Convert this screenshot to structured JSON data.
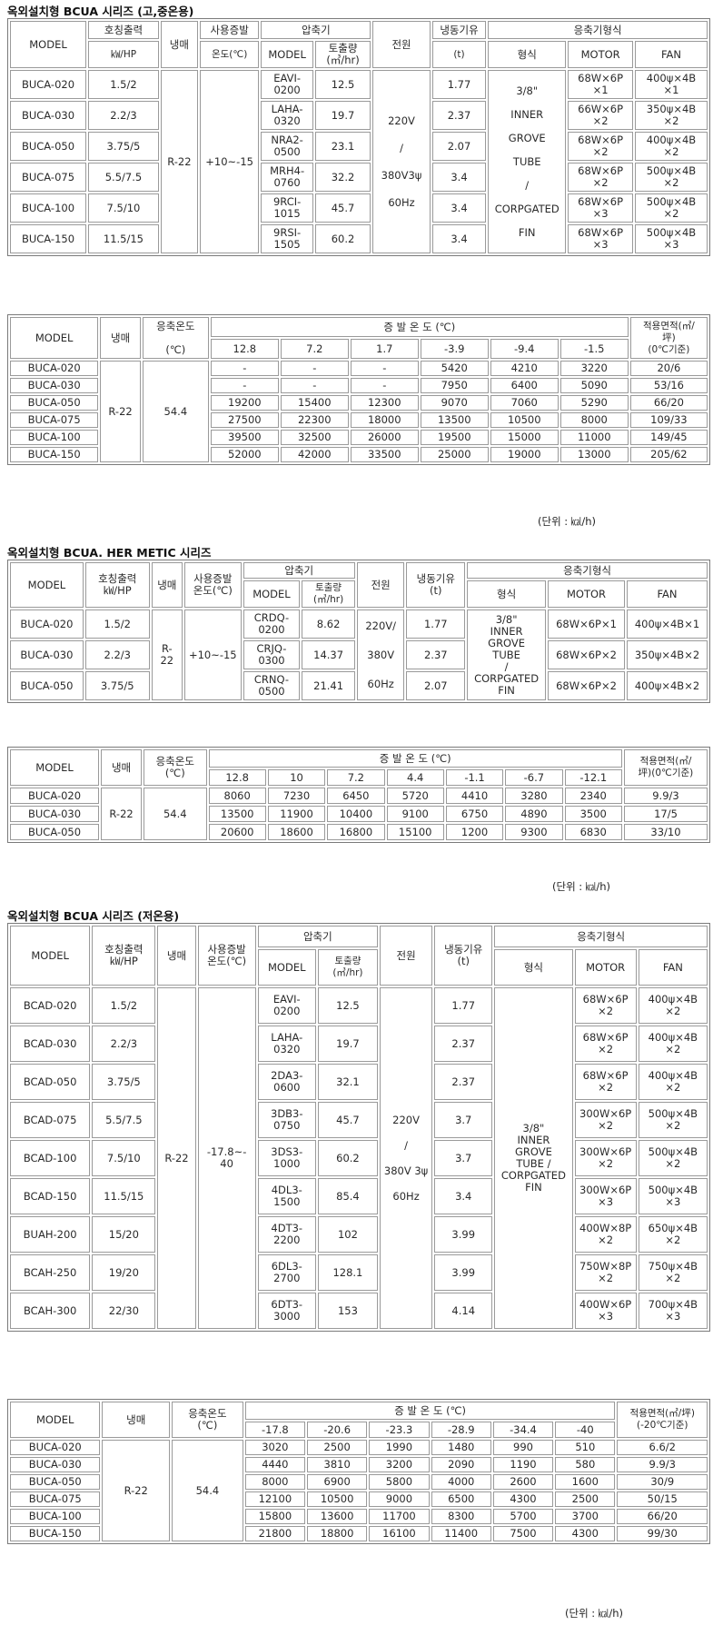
{
  "sections": [
    {
      "title": "옥외설치형 BCUA 시리즈 (고,중온용)",
      "spec": {
        "headers": {
          "model": "MODEL",
          "output": "호칭출력",
          "output_unit": "㎾/HP",
          "refrigerant": "냉매",
          "evap_temp": "사용증발",
          "evap_temp_unit": "온도(℃)",
          "compressor": "압축기",
          "comp_model": "MODEL",
          "displacement": "토출량",
          "displacement_unit": "(㎥/hr)",
          "power": "전원",
          "tonnage": "냉동기유",
          "tonnage_unit": "(t)",
          "condenser": "응축기형식",
          "type": "형식",
          "motor": "MOTOR",
          "fan": "FAN"
        },
        "refrigerant": "R-22",
        "evap_temp": "+10~-15",
        "power": [
          "220V",
          "/",
          "380V3ψ",
          "60Hz"
        ],
        "cond_type": [
          "3/8\"",
          "INNER",
          "GROVE",
          "TUBE",
          "/",
          "CORPGATED",
          "FIN"
        ],
        "rows": [
          {
            "model": "BUCA-020",
            "output": "1.5/2",
            "comp": "EAVI-\n0200",
            "disp": "12.5",
            "oil": "1.77",
            "motor": "68W×6P\n×1",
            "fan": "400ψ×4B\n×1"
          },
          {
            "model": "BUCA-030",
            "output": "2.2/3",
            "comp": "LAHA-\n0320",
            "disp": "19.7",
            "oil": "2.37",
            "motor": "66W×6P\n×2",
            "fan": "350ψ×4B\n×2"
          },
          {
            "model": "BUCA-050",
            "output": "3.75/5",
            "comp": "NRA2-\n0500",
            "disp": "23.1",
            "oil": "2.07",
            "motor": "68W×6P\n×2",
            "fan": "400ψ×4B\n×2"
          },
          {
            "model": "BUCA-075",
            "output": "5.5/7.5",
            "comp": "MRH4-\n0760",
            "disp": "32.2",
            "oil": "3.4",
            "motor": "68W×6P\n×2",
            "fan": "500ψ×4B\n×2"
          },
          {
            "model": "BUCA-100",
            "output": "7.5/10",
            "comp": "9RCI-\n1015",
            "disp": "45.7",
            "oil": "3.4",
            "motor": "68W×6P\n×3",
            "fan": "500ψ×4B\n×2"
          },
          {
            "model": "BUCA-150",
            "output": "11.5/15",
            "comp": "9RSI-\n1505",
            "disp": "60.2",
            "oil": "3.4",
            "motor": "68W×6P\n×3",
            "fan": "500ψ×4B\n×3"
          }
        ]
      },
      "capacity": {
        "headers": {
          "model": "MODEL",
          "refrigerant": "냉매",
          "cond_temp": "응축온도",
          "cond_temp_unit": "(℃)",
          "evap": "증 발 온 도 (℃)",
          "area": "적용면적(㎡/\n坪)\n(0℃기준)"
        },
        "refrigerant": "R-22",
        "cond_temp": "54.4",
        "evap_temps": [
          "12.8",
          "7.2",
          "1.7",
          "-3.9",
          "-9.4",
          "-1.5"
        ],
        "rows": [
          {
            "model": "BUCA-020",
            "values": [
              "-",
              "-",
              "-",
              "5420",
              "4210",
              "3220"
            ],
            "area": "20/6"
          },
          {
            "model": "BUCA-030",
            "values": [
              "-",
              "-",
              "-",
              "7950",
              "6400",
              "5090"
            ],
            "area": "53/16"
          },
          {
            "model": "BUCA-050",
            "values": [
              "19200",
              "15400",
              "12300",
              "9070",
              "7060",
              "5290"
            ],
            "area": "66/20"
          },
          {
            "model": "BUCA-075",
            "values": [
              "27500",
              "22300",
              "18000",
              "13500",
              "10500",
              "8000"
            ],
            "area": "109/33"
          },
          {
            "model": "BUCA-100",
            "values": [
              "39500",
              "32500",
              "26000",
              "19500",
              "15000",
              "11000"
            ],
            "area": "149/45"
          },
          {
            "model": "BUCA-150",
            "values": [
              "52000",
              "42000",
              "33500",
              "25000",
              "19000",
              "13000"
            ],
            "area": "205/62"
          }
        ]
      },
      "unit": "(단위 : ㎉/h)"
    },
    {
      "title": "옥외설치형 BCUA. HER METIC 시리즈",
      "spec": {
        "headers": {
          "model": "MODEL",
          "output": "호칭출력\n㎾/HP",
          "refrigerant": "냉매",
          "evap_temp": "사용증발\n온도(℃)",
          "compressor": "압축기",
          "comp_model": "MODEL",
          "displacement": "토출량\n(㎥/hr)",
          "power": "전원",
          "tonnage": "냉동기유\n(t)",
          "condenser": "응축기형식",
          "type": "형식",
          "motor": "MOTOR",
          "fan": "FAN"
        },
        "refrigerant": "R-\n22",
        "evap_temp": "+10~-15",
        "power": [
          "220V/",
          "380V",
          "60Hz"
        ],
        "cond_type": "3/8\"\nINNER\nGROVE\nTUBE\n/\nCORPGATED\nFIN",
        "rows": [
          {
            "model": "BUCA-020",
            "output": "1.5/2",
            "comp": "CRDQ-\n0200",
            "disp": "8.62",
            "oil": "1.77",
            "motor": "68W×6P×1",
            "fan": "400ψ×4B×1"
          },
          {
            "model": "BUCA-030",
            "output": "2.2/3",
            "comp": "CRJQ-\n0300",
            "disp": "14.37",
            "oil": "2.37",
            "motor": "68W×6P×2",
            "fan": "350ψ×4B×2"
          },
          {
            "model": "BUCA-050",
            "output": "3.75/5",
            "comp": "CRNQ-\n0500",
            "disp": "21.41",
            "oil": "2.07",
            "motor": "68W×6P×2",
            "fan": "400ψ×4B×2"
          }
        ]
      },
      "capacity": {
        "headers": {
          "model": "MODEL",
          "refrigerant": "냉매",
          "cond_temp": "응축온도\n(℃)",
          "evap": "증 발 온 도 (℃)",
          "area": "적용면적(㎡/\n坪)(0℃기준)"
        },
        "refrigerant": "R-22",
        "cond_temp": "54.4",
        "evap_temps": [
          "12.8",
          "10",
          "7.2",
          "4.4",
          "-1.1",
          "-6.7",
          "-12.1"
        ],
        "rows": [
          {
            "model": "BUCA-020",
            "values": [
              "8060",
              "7230",
              "6450",
              "5720",
              "4410",
              "3280",
              "2340"
            ],
            "area": "9.9/3"
          },
          {
            "model": "BUCA-030",
            "values": [
              "13500",
              "11900",
              "10400",
              "9100",
              "6750",
              "4890",
              "3500"
            ],
            "area": "17/5"
          },
          {
            "model": "BUCA-050",
            "values": [
              "20600",
              "18600",
              "16800",
              "15100",
              "1200",
              "9300",
              "6830"
            ],
            "area": "33/10"
          }
        ]
      },
      "unit": "(단위 : ㎉/h)"
    },
    {
      "title": "옥외설치형 BCUA 시리즈 (저온용)",
      "spec": {
        "headers": {
          "model": "MODEL",
          "output": "호칭출력\n㎾/HP",
          "refrigerant": "냉매",
          "evap_temp": "사용증발\n온도(℃)",
          "compressor": "압축기",
          "comp_model": "MODEL",
          "displacement": "토출량\n(㎥/hr)",
          "power": "전원",
          "tonnage": "냉동기유\n(t)",
          "condenser": "응축기형식",
          "type": "형식",
          "motor": "MOTOR",
          "fan": "FAN"
        },
        "refrigerant": "R-22",
        "evap_temp": "-17.8~-\n40",
        "power": [
          "220V",
          "/",
          "380V 3ψ",
          "60Hz"
        ],
        "cond_type": "3/8\"\nINNER\nGROVE\nTUBE /\nCORPGATED\nFIN",
        "rows": [
          {
            "model": "BCAD-020",
            "output": "1.5/2",
            "comp": "EAVI-\n0200",
            "disp": "12.5",
            "oil": "1.77",
            "motor": "68W×6P\n×2",
            "fan": "400ψ×4B\n×2"
          },
          {
            "model": "BCAD-030",
            "output": "2.2/3",
            "comp": "LAHA-\n0320",
            "disp": "19.7",
            "oil": "2.37",
            "motor": "68W×6P\n×2",
            "fan": "400ψ×4B\n×2"
          },
          {
            "model": "BCAD-050",
            "output": "3.75/5",
            "comp": "2DA3-\n0600",
            "disp": "32.1",
            "oil": "2.37",
            "motor": "68W×6P\n×2",
            "fan": "400ψ×4B\n×2"
          },
          {
            "model": "BCAD-075",
            "output": "5.5/7.5",
            "comp": "3DB3-\n0750",
            "disp": "45.7",
            "oil": "3.7",
            "motor": "300W×6P\n×2",
            "fan": "500ψ×4B\n×2"
          },
          {
            "model": "BCAD-100",
            "output": "7.5/10",
            "comp": "3DS3-\n1000",
            "disp": "60.2",
            "oil": "3.7",
            "motor": "300W×6P\n×2",
            "fan": "500ψ×4B\n×2"
          },
          {
            "model": "BCAD-150",
            "output": "11.5/15",
            "comp": "4DL3-\n1500",
            "disp": "85.4",
            "oil": "3.4",
            "motor": "300W×6P\n×3",
            "fan": "500ψ×4B\n×3"
          },
          {
            "model": "BUAH-200",
            "output": "15/20",
            "comp": "4DT3-\n2200",
            "disp": "102",
            "oil": "3.99",
            "motor": "400W×8P\n×2",
            "fan": "650ψ×4B\n×2"
          },
          {
            "model": "BCAH-250",
            "output": "19/20",
            "comp": "6DL3-\n2700",
            "disp": "128.1",
            "oil": "3.99",
            "motor": "750W×8P\n×2",
            "fan": "750ψ×4B\n×2"
          },
          {
            "model": "BCAH-300",
            "output": "22/30",
            "comp": "6DT3-\n3000",
            "disp": "153",
            "oil": "4.14",
            "motor": "400W×6P\n×3",
            "fan": "700ψ×4B\n×3"
          }
        ]
      },
      "capacity": {
        "headers": {
          "model": "MODEL",
          "refrigerant": "냉매",
          "cond_temp": "응축온도\n(℃)",
          "evap": "증 발 온 도 (℃)",
          "area": "적용면적(㎡/坪)\n(-20℃기준)"
        },
        "refrigerant": "R-22",
        "cond_temp": "54.4",
        "evap_temps": [
          "-17.8",
          "-20.6",
          "-23.3",
          "-28.9",
          "-34.4",
          "-40"
        ],
        "rows": [
          {
            "model": "BUCA-020",
            "values": [
              "3020",
              "2500",
              "1990",
              "1480",
              "990",
              "510"
            ],
            "area": "6.6/2"
          },
          {
            "model": "BUCA-030",
            "values": [
              "4440",
              "3810",
              "3200",
              "2090",
              "1190",
              "580"
            ],
            "area": "9.9/3"
          },
          {
            "model": "BUCA-050",
            "values": [
              "8000",
              "6900",
              "5800",
              "4000",
              "2600",
              "1600"
            ],
            "area": "30/9"
          },
          {
            "model": "BUCA-075",
            "values": [
              "12100",
              "10500",
              "9000",
              "6500",
              "4300",
              "2500"
            ],
            "area": "50/15"
          },
          {
            "model": "BUCA-100",
            "values": [
              "15800",
              "13600",
              "11700",
              "8300",
              "5700",
              "3700"
            ],
            "area": "66/20"
          },
          {
            "model": "BUCA-150",
            "values": [
              "21800",
              "18800",
              "16100",
              "11400",
              "7500",
              "4300"
            ],
            "area": "99/30"
          }
        ]
      },
      "unit": "(단위 : ㎉/h)"
    }
  ]
}
